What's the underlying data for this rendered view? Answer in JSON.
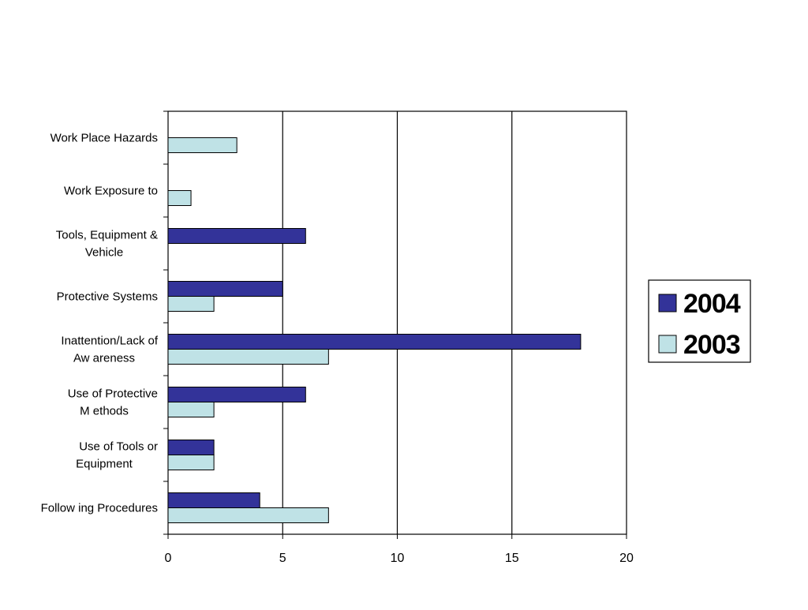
{
  "chart_data": {
    "type": "bar",
    "orientation": "horizontal",
    "title": "",
    "xlabel": "",
    "ylabel": "",
    "categories": [
      [
        "Work Place Hazards"
      ],
      [
        "Work Exposure to"
      ],
      [
        "Tools, Equipment &",
        "Vehicle"
      ],
      [
        "Protective Systems"
      ],
      [
        "Inattention/Lack of",
        "Aw areness"
      ],
      [
        "Use of Protective",
        "M ethods"
      ],
      [
        "Use of Tools or",
        "Equipment"
      ],
      [
        "Follow ing Procedures"
      ]
    ],
    "series": [
      {
        "name": "2004",
        "color": "#333399",
        "values": [
          0,
          0,
          6,
          5,
          18,
          6,
          2,
          4
        ]
      },
      {
        "name": "2003",
        "color": "#bfe2e6",
        "values": [
          3,
          1,
          0,
          2,
          7,
          2,
          2,
          7
        ]
      }
    ],
    "xlim": [
      0,
      20
    ],
    "xticks": [
      "0",
      "5",
      "10",
      "15",
      "20"
    ],
    "xtick_values": [
      0,
      5,
      10,
      15,
      20
    ],
    "grid": "vertical",
    "legend_position": "right"
  }
}
